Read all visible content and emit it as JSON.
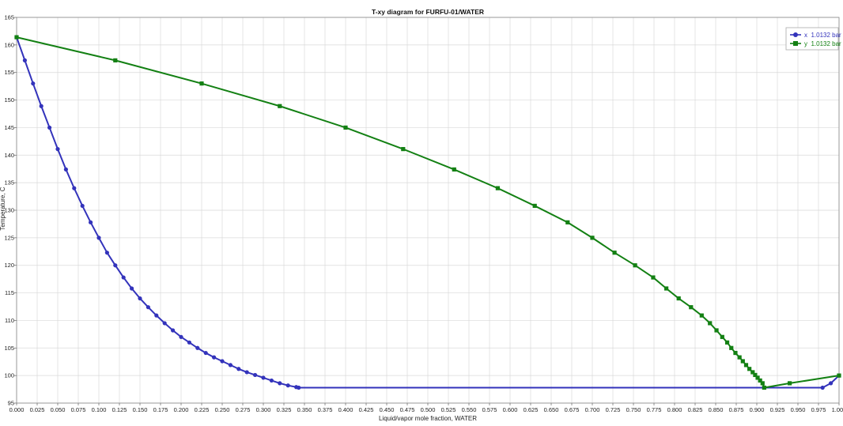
{
  "chart_data": {
    "type": "line",
    "title": "T-xy diagram for FURFU-01/WATER",
    "xlabel": "Liquid/vapor mole fraction, WATER",
    "ylabel": "Temperature, C",
    "xlim": [
      0,
      1
    ],
    "ylim": [
      95,
      165
    ],
    "x_ticks": [
      "0.000",
      "0.025",
      "0.050",
      "0.075",
      "0.100",
      "0.125",
      "0.150",
      "0.175",
      "0.200",
      "0.225",
      "0.250",
      "0.275",
      "0.300",
      "0.325",
      "0.350",
      "0.375",
      "0.400",
      "0.425",
      "0.450",
      "0.475",
      "0.500",
      "0.525",
      "0.550",
      "0.575",
      "0.600",
      "0.625",
      "0.650",
      "0.675",
      "0.700",
      "0.725",
      "0.750",
      "0.775",
      "0.800",
      "0.825",
      "0.850",
      "0.875",
      "0.900",
      "0.925",
      "0.950",
      "0.975",
      "1.000"
    ],
    "y_ticks": [
      "95",
      "100",
      "105",
      "110",
      "115",
      "120",
      "125",
      "130",
      "135",
      "140",
      "145",
      "150",
      "155",
      "160",
      "165"
    ],
    "grid": true,
    "legend_position": "top-right",
    "series": [
      {
        "name": "x  1.0132 bar",
        "color": "#3333bb",
        "marker": "circle",
        "x": [
          0.0,
          0.01,
          0.02,
          0.03,
          0.04,
          0.05,
          0.06,
          0.07,
          0.08,
          0.09,
          0.1,
          0.11,
          0.12,
          0.13,
          0.14,
          0.15,
          0.16,
          0.17,
          0.18,
          0.19,
          0.2,
          0.21,
          0.22,
          0.23,
          0.24,
          0.25,
          0.26,
          0.27,
          0.28,
          0.29,
          0.3,
          0.31,
          0.32,
          0.33,
          0.34,
          0.343,
          0.98,
          0.99,
          1.0
        ],
        "y": [
          161.4,
          157.2,
          153.0,
          148.9,
          145.0,
          141.1,
          137.4,
          134.0,
          130.8,
          127.8,
          125.0,
          122.3,
          120.0,
          117.8,
          115.8,
          114.0,
          112.4,
          110.9,
          109.5,
          108.2,
          107.0,
          106.0,
          105.0,
          104.1,
          103.3,
          102.6,
          101.9,
          101.2,
          100.6,
          100.1,
          99.6,
          99.1,
          98.6,
          98.2,
          97.9,
          97.8,
          97.8,
          98.6,
          100.0
        ]
      },
      {
        "name": "y  1.0132 bar",
        "color": "#138013",
        "marker": "square",
        "x": [
          0.0,
          0.12,
          0.225,
          0.32,
          0.4,
          0.47,
          0.532,
          0.585,
          0.63,
          0.67,
          0.7,
          0.727,
          0.752,
          0.774,
          0.79,
          0.805,
          0.82,
          0.833,
          0.843,
          0.851,
          0.858,
          0.864,
          0.869,
          0.874,
          0.879,
          0.883,
          0.887,
          0.891,
          0.895,
          0.898,
          0.901,
          0.904,
          0.907,
          0.909,
          0.94,
          1.0
        ],
        "y": [
          161.4,
          157.2,
          153.0,
          148.9,
          145.0,
          141.1,
          137.4,
          134.0,
          130.8,
          127.8,
          125.0,
          122.3,
          120.0,
          117.8,
          115.8,
          114.0,
          112.4,
          110.9,
          109.5,
          108.2,
          107.0,
          106.0,
          105.0,
          104.1,
          103.3,
          102.6,
          101.9,
          101.2,
          100.6,
          100.1,
          99.6,
          99.1,
          98.6,
          97.8,
          98.6,
          100.0
        ]
      }
    ]
  }
}
